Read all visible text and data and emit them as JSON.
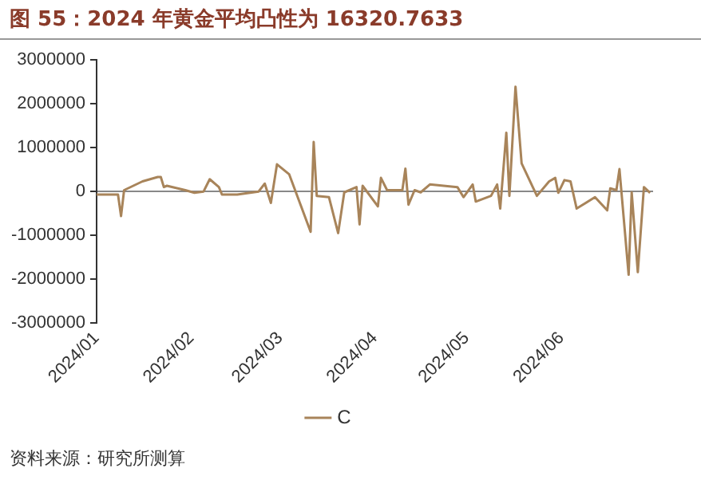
{
  "chart_data": {
    "type": "line",
    "title": "图 55：2024 年黄金平均凸性为 16320.7633",
    "annotations": [
      "资料来源：研究所测算"
    ],
    "x": [
      "2024-01-01",
      "2024-01-08",
      "2024-01-09",
      "2024-01-10",
      "2024-01-16",
      "2024-01-21",
      "2024-01-22",
      "2024-01-23",
      "2024-01-24",
      "2024-01-30",
      "2024-02-02",
      "2024-02-05",
      "2024-02-07",
      "2024-02-10",
      "2024-02-11",
      "2024-02-16",
      "2024-02-23",
      "2024-02-25",
      "2024-02-27",
      "2024-02-29",
      "2024-03-04",
      "2024-03-11",
      "2024-03-12",
      "2024-03-13",
      "2024-03-17",
      "2024-03-20",
      "2024-03-22",
      "2024-03-26",
      "2024-03-27",
      "2024-03-28",
      "2024-04-02",
      "2024-04-03",
      "2024-04-05",
      "2024-04-10",
      "2024-04-11",
      "2024-04-12",
      "2024-04-14",
      "2024-04-16",
      "2024-04-19",
      "2024-04-28",
      "2024-04-30",
      "2024-05-03",
      "2024-05-04",
      "2024-05-09",
      "2024-05-11",
      "2024-05-12",
      "2024-05-14",
      "2024-05-15",
      "2024-05-17",
      "2024-05-19",
      "2024-05-24",
      "2024-05-28",
      "2024-05-30",
      "2024-05-31",
      "2024-06-02",
      "2024-06-04",
      "2024-06-06",
      "2024-06-12",
      "2024-06-16",
      "2024-06-17",
      "2024-06-19",
      "2024-06-20",
      "2024-06-23",
      "2024-06-24",
      "2024-06-26",
      "2024-06-28",
      "2024-06-30"
    ],
    "series": [
      {
        "name": "C",
        "color": "#a8845a",
        "values": [
          -70000,
          -70000,
          -560000,
          30000,
          230000,
          330000,
          330000,
          100000,
          130000,
          30000,
          -30000,
          0,
          280000,
          100000,
          -70000,
          -70000,
          0,
          180000,
          -260000,
          620000,
          390000,
          -920000,
          1130000,
          -100000,
          -130000,
          -950000,
          -20000,
          100000,
          -750000,
          130000,
          -340000,
          310000,
          30000,
          30000,
          520000,
          -300000,
          30000,
          -20000,
          160000,
          100000,
          -130000,
          160000,
          -230000,
          -100000,
          160000,
          -390000,
          1340000,
          -100000,
          2390000,
          640000,
          -100000,
          230000,
          310000,
          -30000,
          260000,
          230000,
          -390000,
          -130000,
          -430000,
          70000,
          30000,
          510000,
          -1900000,
          -20000,
          -1840000,
          100000,
          -30000
        ]
      }
    ],
    "xlim": [
      "2024-01-01",
      "2024-07-01"
    ],
    "xticks": [
      {
        "value": "2024-01-01",
        "label": "2024/01"
      },
      {
        "value": "2024-02-01",
        "label": "2024/02"
      },
      {
        "value": "2024-03-01",
        "label": "2024/03"
      },
      {
        "value": "2024-04-01",
        "label": "2024/04"
      },
      {
        "value": "2024-05-01",
        "label": "2024/05"
      },
      {
        "value": "2024-06-01",
        "label": "2024/06"
      }
    ],
    "ylim": [
      -3000000,
      3000000
    ],
    "yticks": [
      -3000000,
      -2000000,
      -1000000,
      0,
      1000000,
      2000000,
      3000000
    ],
    "legend": "bottom",
    "marker": "none",
    "line_style": "solid"
  }
}
